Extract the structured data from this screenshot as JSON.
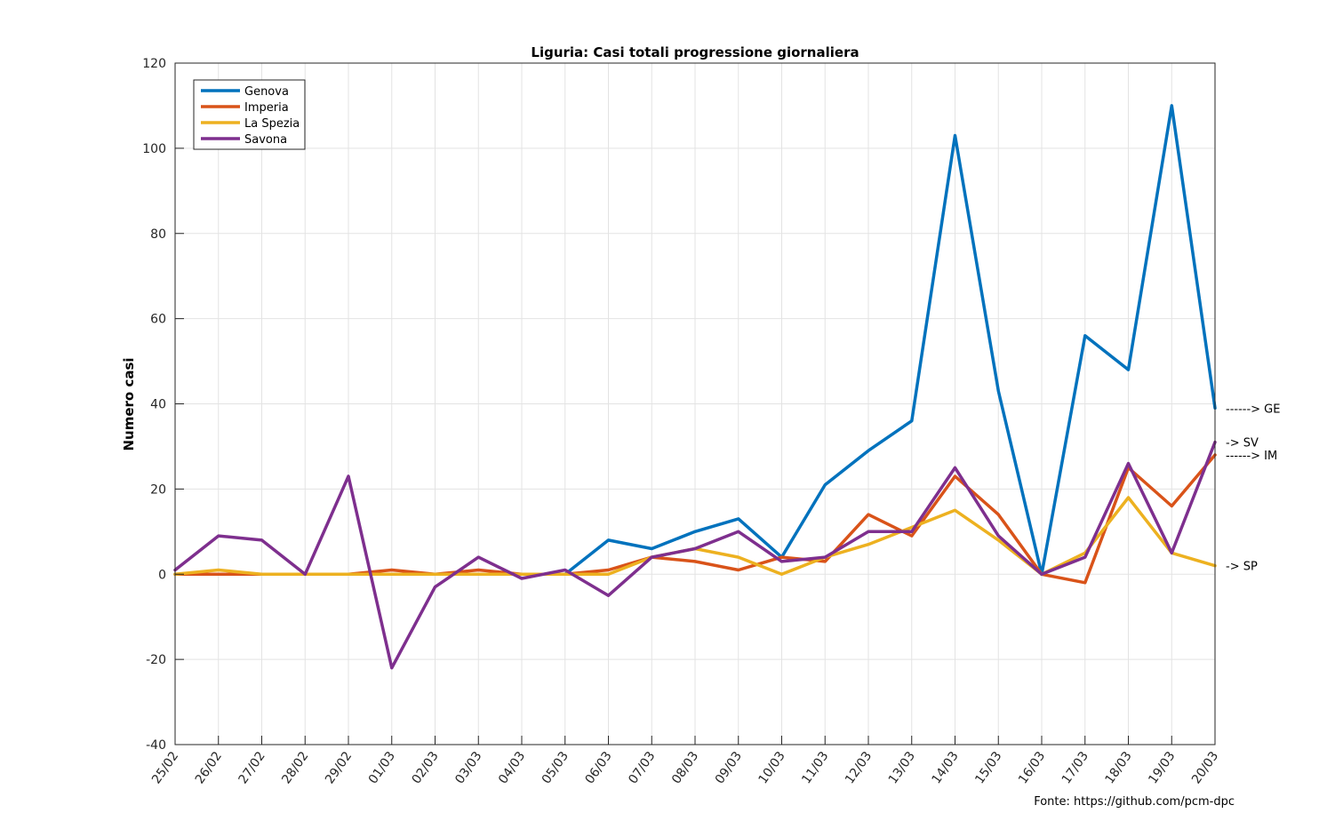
{
  "chart_data": {
    "type": "line",
    "title": "Liguria: Casi totali progressione giornaliera",
    "ylabel": "Numero casi",
    "xlabel": "",
    "ylim": [
      -40,
      120
    ],
    "yticks": [
      -40,
      -20,
      0,
      20,
      40,
      60,
      80,
      100,
      120
    ],
    "grid": true,
    "legend_position": "top-left",
    "categories": [
      "25/02",
      "26/02",
      "27/02",
      "28/02",
      "29/02",
      "01/03",
      "02/03",
      "03/03",
      "04/03",
      "05/03",
      "06/03",
      "07/03",
      "08/03",
      "09/03",
      "10/03",
      "11/03",
      "12/03",
      "13/03",
      "14/03",
      "15/03",
      "16/03",
      "17/03",
      "18/03",
      "19/03",
      "20/03"
    ],
    "series": [
      {
        "name": "Genova",
        "color": "#0072BD",
        "values": [
          0,
          0,
          0,
          0,
          0,
          0,
          0,
          0,
          0,
          0,
          8,
          6,
          10,
          13,
          4,
          21,
          29,
          36,
          103,
          43,
          0,
          56,
          48,
          110,
          39
        ]
      },
      {
        "name": "Imperia",
        "color": "#D95319",
        "values": [
          0,
          0,
          0,
          0,
          0,
          1,
          0,
          1,
          0,
          0,
          1,
          4,
          3,
          1,
          4,
          3,
          14,
          9,
          23,
          14,
          0,
          -2,
          25,
          16,
          28
        ]
      },
      {
        "name": "La Spezia",
        "color": "#EDB120",
        "values": [
          0,
          1,
          0,
          0,
          0,
          0,
          0,
          0,
          0,
          0,
          0,
          4,
          6,
          4,
          0,
          4,
          7,
          11,
          15,
          8,
          0,
          5,
          18,
          5,
          2
        ]
      },
      {
        "name": "Savona",
        "color": "#7E2F8E",
        "values": [
          1,
          9,
          8,
          0,
          23,
          -22,
          -3,
          4,
          -1,
          1,
          -5,
          4,
          6,
          10,
          3,
          4,
          10,
          10,
          25,
          9,
          0,
          4,
          26,
          5,
          31
        ]
      }
    ],
    "annotations": [
      {
        "text": "------> GE",
        "value": 39
      },
      {
        "text": "-> SV",
        "value": 31
      },
      {
        "text": "------> IM",
        "value": 28
      },
      {
        "text": "-> SP",
        "value": 2
      }
    ],
    "source": "Fonte: https://github.com/pcm-dpc"
  }
}
